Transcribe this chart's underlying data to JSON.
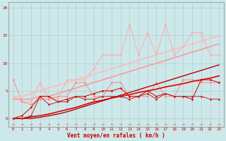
{
  "background_color": "#cce8ea",
  "grid_color": "#aaaaaa",
  "xlabel": "Vent moyen/en rafales ( km/h )",
  "xlabel_color": "#cc0000",
  "tick_color": "#cc0000",
  "xlim": [
    -0.5,
    23.5
  ],
  "ylim": [
    -1.5,
    21
  ],
  "yticks": [
    0,
    5,
    10,
    15,
    20
  ],
  "xticks": [
    0,
    1,
    2,
    3,
    4,
    5,
    6,
    7,
    8,
    9,
    10,
    11,
    12,
    13,
    14,
    15,
    16,
    17,
    18,
    19,
    20,
    21,
    22,
    23
  ],
  "series": [
    {
      "x": [
        0,
        1,
        2,
        3,
        4,
        5,
        6,
        7,
        8,
        9,
        10,
        11,
        12,
        13,
        14,
        15,
        16,
        17,
        18,
        19,
        20,
        21,
        22,
        23
      ],
      "y": [
        4,
        3,
        3,
        6.5,
        3.5,
        3.5,
        7,
        7,
        7,
        9,
        11.5,
        11.5,
        11.5,
        17,
        11.5,
        15.5,
        11.5,
        17,
        11.5,
        13,
        15.5,
        15.5,
        11.5,
        11.5
      ],
      "color": "#ffaaaa",
      "linewidth": 0.7,
      "marker": "D",
      "markersize": 1.5,
      "alpha": 1.0
    },
    {
      "x": [
        0,
        1,
        2,
        3,
        4,
        5,
        6,
        7,
        8,
        9,
        10,
        11,
        12,
        13,
        14,
        15,
        16,
        17,
        18,
        19,
        20,
        21,
        22,
        23
      ],
      "y": [
        3.5,
        3.5,
        3.5,
        4,
        4,
        4.5,
        5,
        5.5,
        6,
        6.5,
        7,
        7.5,
        8,
        8.5,
        9,
        9.5,
        10,
        10.5,
        11,
        11.5,
        12,
        12.5,
        13,
        13.5
      ],
      "color": "#ff9999",
      "linewidth": 1.2,
      "marker": null,
      "markersize": 0,
      "alpha": 1.0
    },
    {
      "x": [
        0,
        1,
        2,
        3,
        4,
        5,
        6,
        7,
        8,
        9,
        10,
        11,
        12,
        13,
        14,
        15,
        16,
        17,
        18,
        19,
        20,
        21,
        22,
        23
      ],
      "y": [
        7,
        3,
        2.5,
        3.5,
        3.5,
        4,
        4,
        6.5,
        6.5,
        4,
        4,
        6.5,
        6.5,
        4,
        4,
        4,
        6.5,
        4,
        4,
        7,
        7,
        6.5,
        6.5,
        6.5
      ],
      "color": "#ff8888",
      "linewidth": 0.7,
      "marker": "D",
      "markersize": 1.5,
      "alpha": 1.0
    },
    {
      "x": [
        0,
        1,
        2,
        3,
        4,
        5,
        6,
        7,
        8,
        9,
        10,
        11,
        12,
        13,
        14,
        15,
        16,
        17,
        18,
        19,
        20,
        21,
        22,
        23
      ],
      "y": [
        4,
        4,
        4.5,
        5,
        5.5,
        6,
        6.5,
        7,
        7.5,
        8,
        8.5,
        9,
        9.5,
        10,
        10.5,
        11,
        11.5,
        12,
        12.5,
        13,
        13.5,
        14,
        14.5,
        15
      ],
      "color": "#ffbbbb",
      "linewidth": 1.2,
      "marker": null,
      "markersize": 0,
      "alpha": 1.0
    },
    {
      "x": [
        0,
        1,
        2,
        3,
        4,
        5,
        6,
        7,
        8,
        9,
        10,
        11,
        12,
        13,
        14,
        15,
        16,
        17,
        18,
        19,
        20,
        21,
        22,
        23
      ],
      "y": [
        0,
        0.5,
        2,
        4,
        4,
        3,
        3.5,
        4,
        4,
        4.5,
        5,
        5,
        5.5,
        4,
        4,
        5,
        4,
        4.5,
        4,
        4,
        3.5,
        7,
        7,
        6.5
      ],
      "color": "#cc0000",
      "linewidth": 0.7,
      "marker": "D",
      "markersize": 1.5,
      "alpha": 1.0
    },
    {
      "x": [
        0,
        1,
        2,
        3,
        4,
        5,
        6,
        7,
        8,
        9,
        10,
        11,
        12,
        13,
        14,
        15,
        16,
        17,
        18,
        19,
        20,
        21,
        22,
        23
      ],
      "y": [
        0,
        0,
        0.3,
        0.5,
        0.8,
        1.2,
        1.6,
        2,
        2.5,
        3,
        3.3,
        3.7,
        4,
        4.3,
        4.7,
        5,
        5.3,
        5.7,
        6,
        6.3,
        6.7,
        7,
        7.3,
        7.7
      ],
      "color": "#dd0000",
      "linewidth": 1.2,
      "marker": null,
      "markersize": 0,
      "alpha": 1.0
    },
    {
      "x": [
        0,
        1,
        2,
        3,
        4,
        5,
        6,
        7,
        8,
        9,
        10,
        11,
        12,
        13,
        14,
        15,
        16,
        17,
        18,
        19,
        20,
        21,
        22,
        23
      ],
      "y": [
        0,
        0,
        0,
        0.2,
        0.5,
        0.8,
        1.2,
        1.7,
        2.2,
        2.7,
        3.2,
        3.7,
        4.2,
        4.7,
        5.2,
        5.7,
        6.2,
        6.7,
        7.2,
        7.7,
        8.2,
        8.7,
        9.2,
        9.7
      ],
      "color": "#bb0000",
      "linewidth": 1.0,
      "marker": null,
      "markersize": 0,
      "alpha": 1.0
    },
    {
      "x": [
        0,
        1,
        2,
        3,
        4,
        5,
        6,
        7,
        8,
        9,
        10,
        11,
        12,
        13,
        14,
        15,
        16,
        17,
        18,
        19,
        20,
        21,
        22,
        23
      ],
      "y": [
        0,
        0,
        0.5,
        4,
        2.5,
        3,
        3,
        4,
        3.5,
        3.5,
        4,
        4,
        4,
        3.5,
        4,
        4.5,
        3.5,
        4.5,
        4,
        4,
        4,
        4,
        3.5,
        3.5
      ],
      "color": "#cc2222",
      "linewidth": 0.7,
      "marker": "D",
      "markersize": 1.5,
      "alpha": 1.0
    }
  ],
  "wind_arrows": {
    "y_data": -0.8,
    "y_display": -1.1,
    "color": "#ff6666",
    "x": [
      0,
      1,
      2,
      3,
      4,
      5,
      6,
      7,
      8,
      9,
      10,
      11,
      12,
      13,
      14,
      15,
      16,
      17,
      18,
      19,
      20,
      21,
      22,
      23
    ]
  }
}
